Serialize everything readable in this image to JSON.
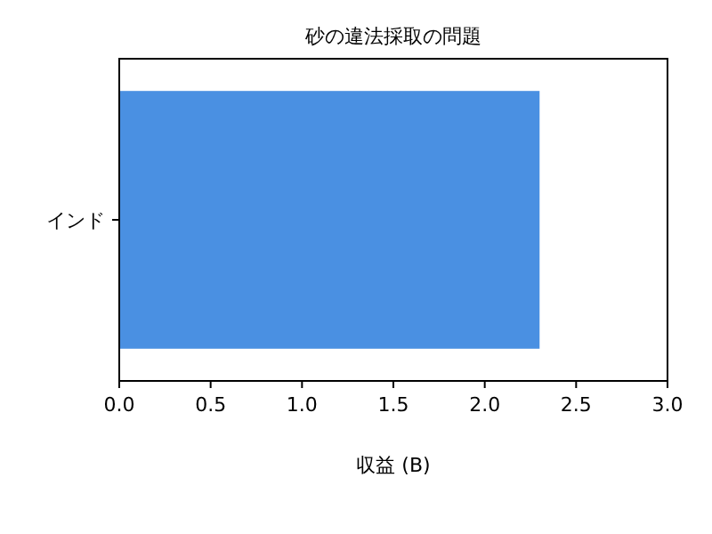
{
  "chart_data": {
    "type": "bar",
    "orientation": "horizontal",
    "title": "砂の違法採取の問題",
    "xlabel": "収益 (B)",
    "categories": [
      "インド"
    ],
    "values": [
      2.3
    ],
    "color": "#4a90e2",
    "xlim": [
      0,
      3
    ],
    "xticks": [
      {
        "value": 0,
        "label": "0.0"
      },
      0.5,
      {
        "value": 1,
        "label": "1.0"
      },
      1.5,
      {
        "value": 2,
        "label": "2.0"
      },
      2.5,
      {
        "value": 3,
        "label": "3.0"
      }
    ],
    "grid": false
  }
}
